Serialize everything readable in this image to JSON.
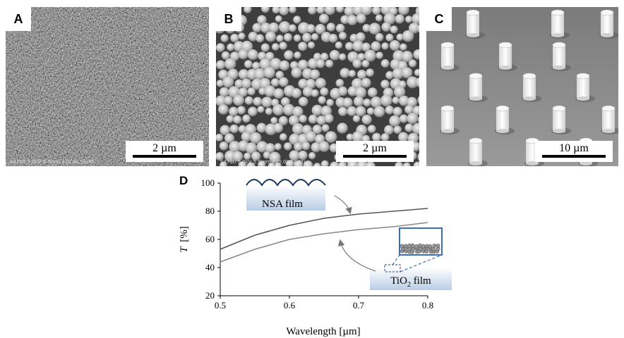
{
  "panels": {
    "a": {
      "letter": "A",
      "scale_label": "2 µm",
      "caption": "S4700 5.0kV 6.0mm x20.0k SE(M)"
    },
    "b": {
      "letter": "B",
      "scale_label": "2 µm",
      "caption": "S4700 5.0kV 5.9mm x20.0k SE(M)"
    },
    "c": {
      "letter": "C",
      "scale_label": "10 µm"
    }
  },
  "chart_data": {
    "type": "line",
    "panel_letter": "D",
    "xlabel": "Wavelength [µm]",
    "ylabel_italic": "T",
    "ylabel_unit": "[%]",
    "xlim": [
      0.5,
      0.8
    ],
    "ylim": [
      20,
      100
    ],
    "xticks": [
      "0.5",
      "0.6",
      "0.7",
      "0.8"
    ],
    "yticks": [
      "20",
      "40",
      "60",
      "80",
      "100"
    ],
    "grid": false,
    "series": [
      {
        "name": "NSA film",
        "color": "#555555",
        "x": [
          0.5,
          0.55,
          0.6,
          0.65,
          0.7,
          0.75,
          0.8
        ],
        "y": [
          53,
          63,
          70,
          75,
          78,
          80,
          82
        ]
      },
      {
        "name": "TiO2 film",
        "color": "#888888",
        "x": [
          0.5,
          0.55,
          0.6,
          0.65,
          0.7,
          0.75,
          0.8
        ],
        "y": [
          44,
          53,
          60,
          64,
          67,
          69,
          72
        ]
      }
    ],
    "annotations": {
      "nsa_label": "NSA film",
      "tio2_label_main": "TiO",
      "tio2_label_sub": "2",
      "tio2_label_rest": " film"
    }
  }
}
